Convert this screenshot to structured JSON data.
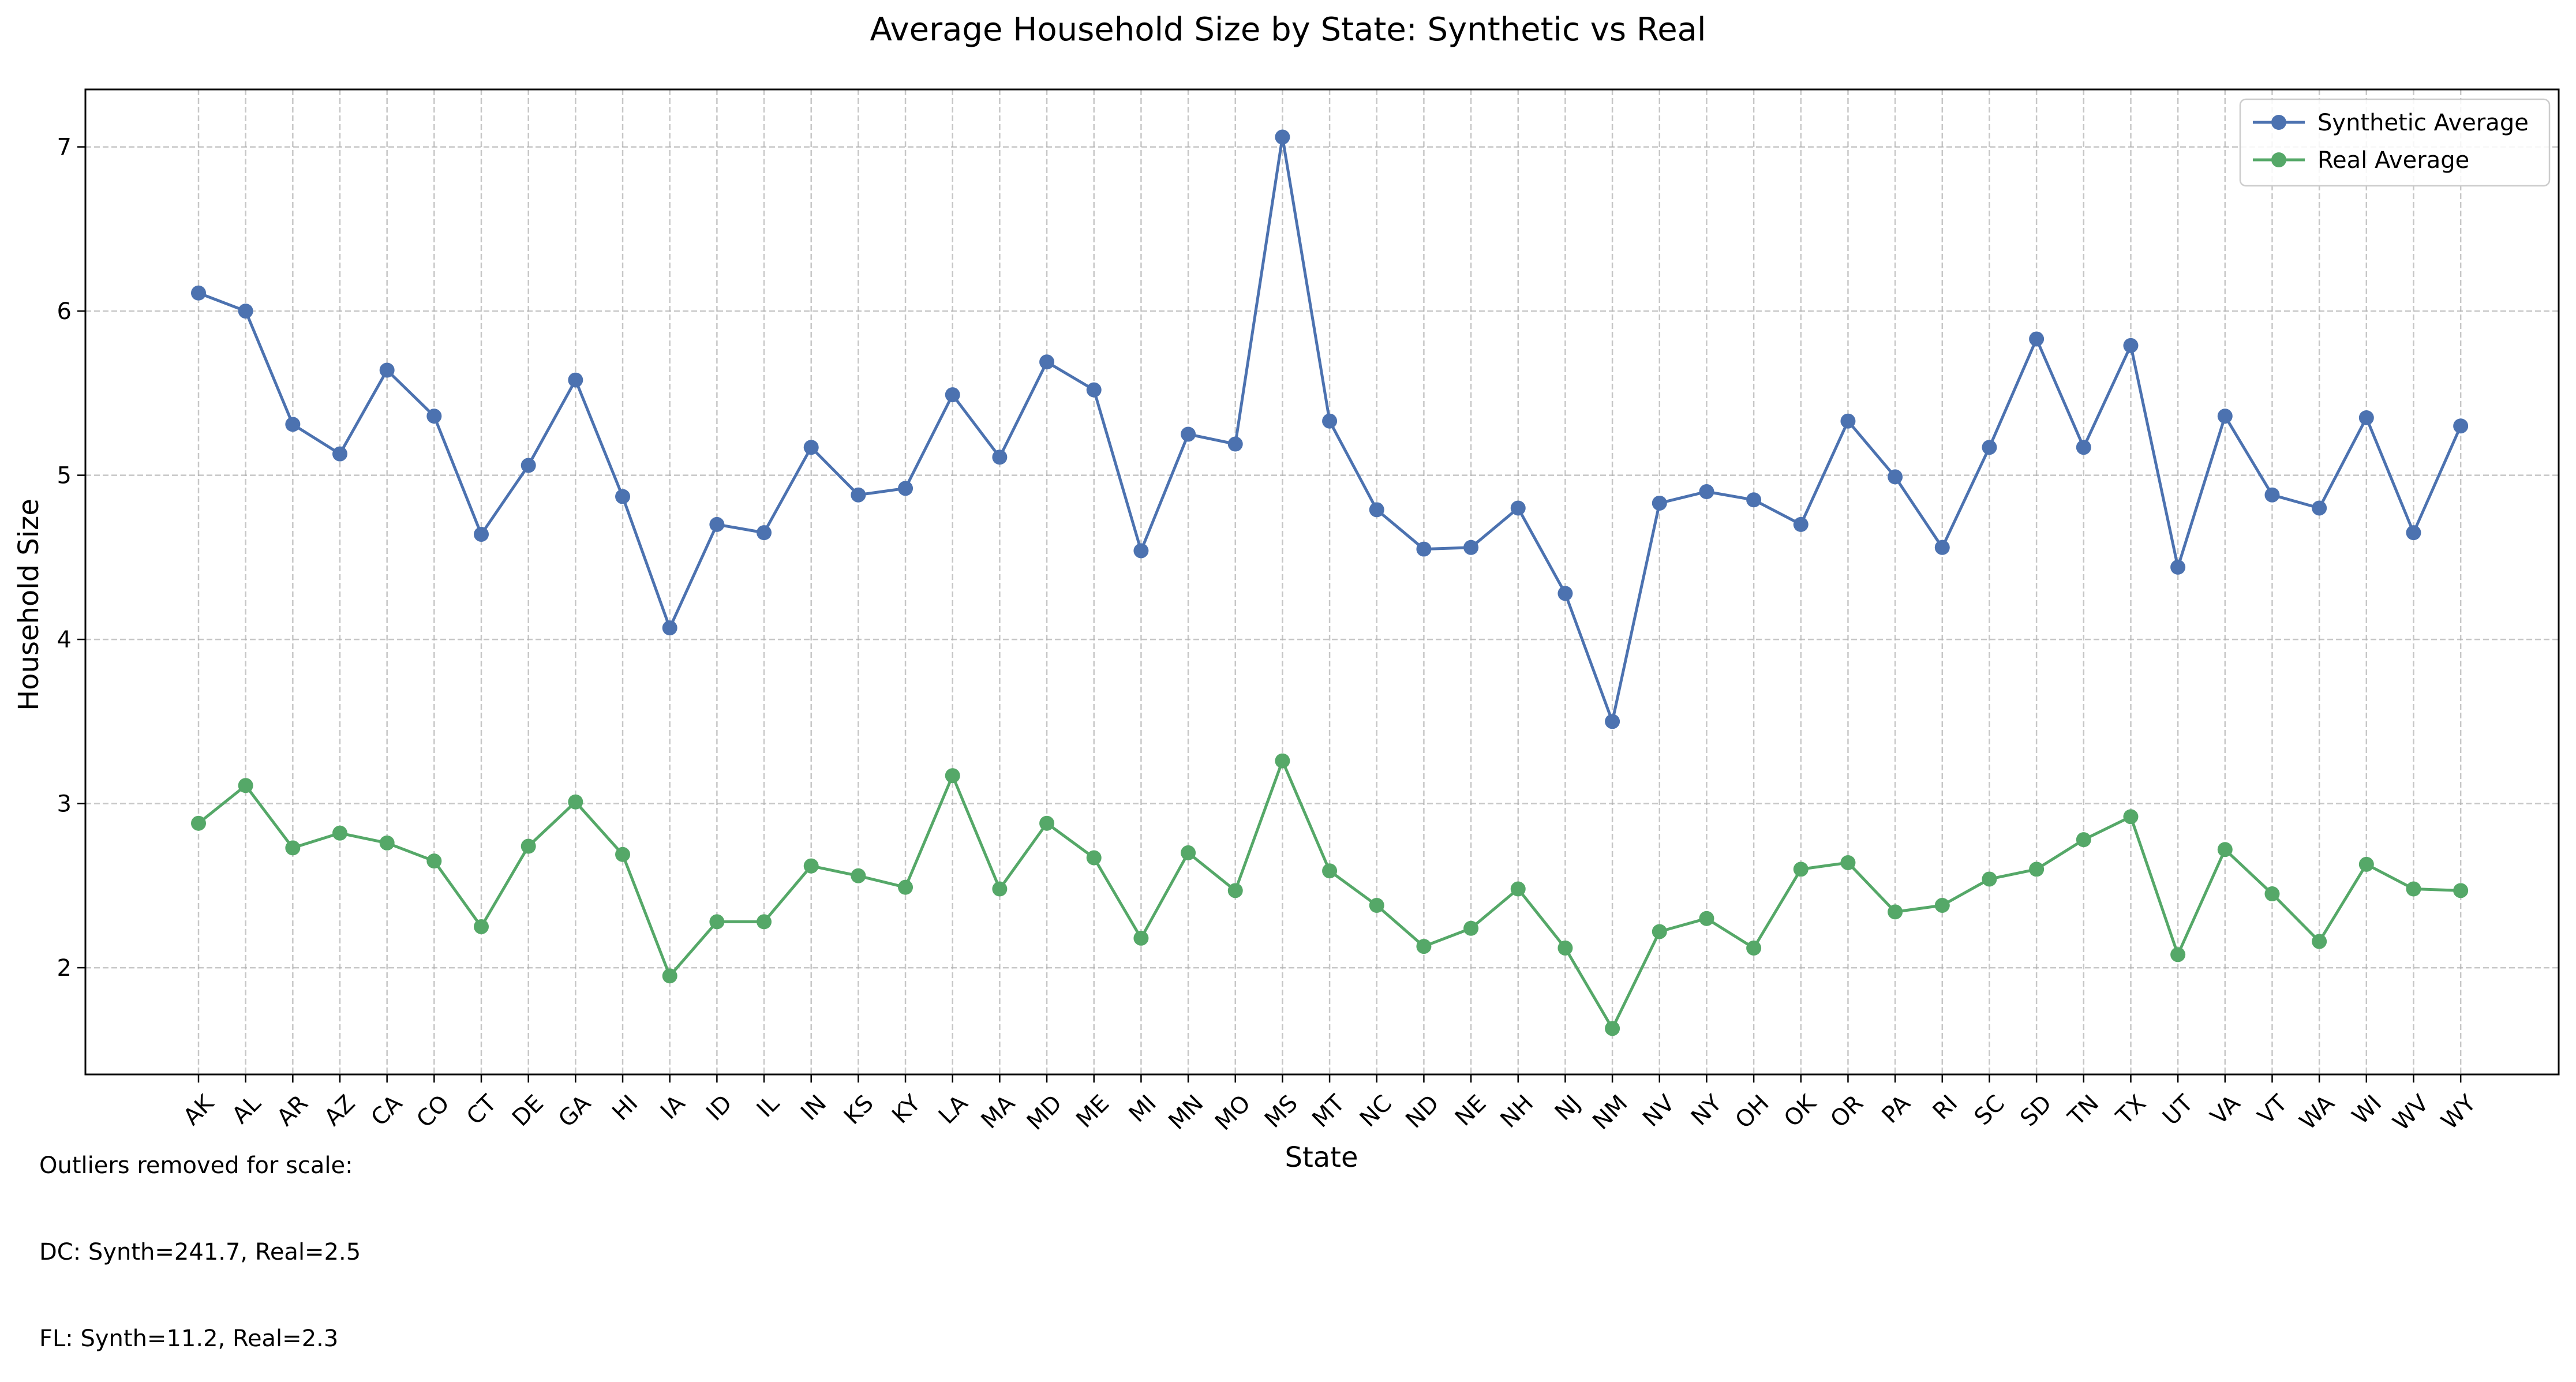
{
  "chart_data": {
    "type": "line",
    "title": "Average Household Size by State: Synthetic vs Real",
    "xlabel": "State",
    "ylabel": "Household Size",
    "ylim": [
      1.35,
      7.35
    ],
    "yticks": [
      2,
      3,
      4,
      5,
      6,
      7
    ],
    "grid": true,
    "legend_position": "top-right",
    "categories": [
      "AK",
      "AL",
      "AR",
      "AZ",
      "CA",
      "CO",
      "CT",
      "DE",
      "GA",
      "HI",
      "IA",
      "ID",
      "IL",
      "IN",
      "KS",
      "KY",
      "LA",
      "MA",
      "MD",
      "ME",
      "MI",
      "MN",
      "MO",
      "MS",
      "MT",
      "NC",
      "ND",
      "NE",
      "NH",
      "NJ",
      "NM",
      "NV",
      "NY",
      "OH",
      "OK",
      "OR",
      "PA",
      "RI",
      "SC",
      "SD",
      "TN",
      "TX",
      "UT",
      "VA",
      "VT",
      "WA",
      "WI",
      "WV",
      "WY"
    ],
    "series": [
      {
        "name": "Synthetic Average",
        "color": "#4c72b0",
        "values": [
          6.11,
          6.0,
          5.31,
          5.13,
          5.64,
          5.36,
          4.64,
          5.06,
          5.58,
          4.87,
          4.07,
          4.7,
          4.65,
          5.17,
          4.88,
          4.92,
          5.49,
          5.11,
          5.69,
          5.52,
          4.54,
          5.25,
          5.19,
          7.06,
          5.33,
          4.79,
          4.55,
          4.56,
          4.8,
          4.28,
          3.5,
          4.83,
          4.9,
          4.85,
          4.7,
          5.33,
          4.99,
          4.56,
          5.17,
          5.83,
          5.17,
          5.79,
          4.44,
          5.36,
          4.88,
          4.8,
          5.35,
          4.65,
          5.3
        ]
      },
      {
        "name": "Real Average",
        "color": "#55a868",
        "values": [
          2.88,
          3.11,
          2.73,
          2.82,
          2.76,
          2.65,
          2.25,
          2.74,
          3.01,
          2.69,
          1.95,
          2.28,
          2.28,
          2.62,
          2.56,
          2.49,
          3.17,
          2.48,
          2.88,
          2.67,
          2.18,
          2.7,
          2.47,
          3.26,
          2.59,
          2.38,
          2.13,
          2.24,
          2.48,
          2.12,
          1.63,
          2.22,
          2.3,
          2.12,
          2.6,
          2.64,
          2.34,
          2.38,
          2.54,
          2.6,
          2.78,
          2.92,
          2.08,
          2.72,
          2.45,
          2.16,
          2.63,
          2.48,
          2.47
        ]
      }
    ],
    "annotation": {
      "lines": [
        "Outliers removed for scale:",
        "DC: Synth=241.7, Real=2.5",
        "FL: Synth=11.2, Real=2.3"
      ]
    }
  }
}
